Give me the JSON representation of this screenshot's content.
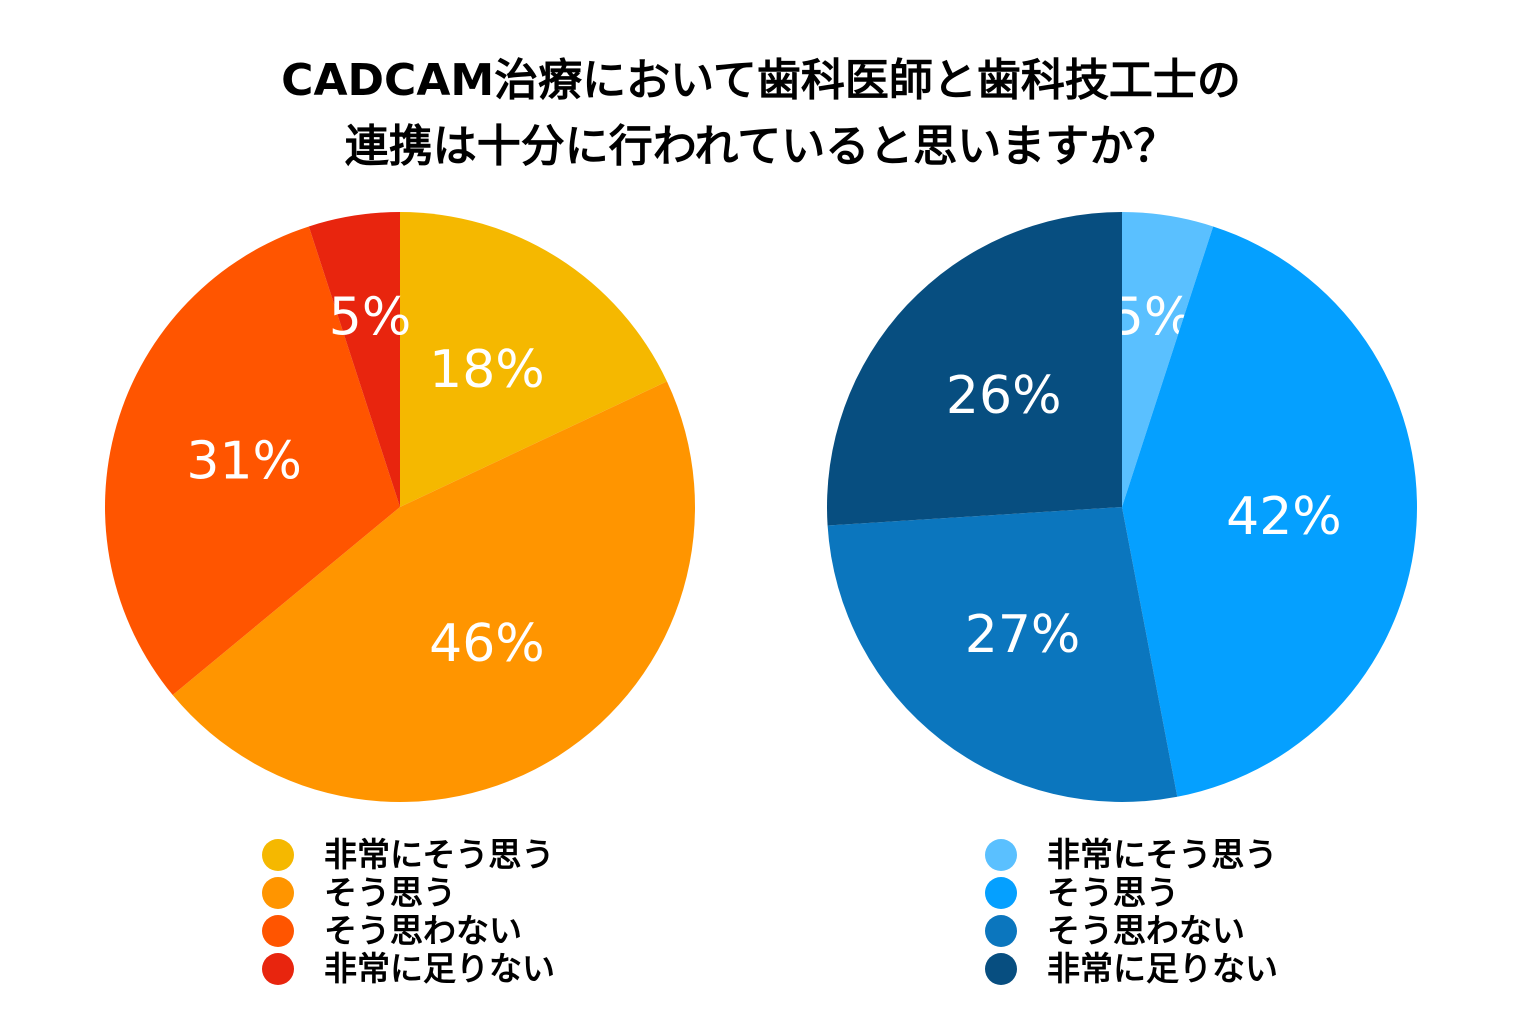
{
  "title": {
    "line1": "CADCAM治療において歯科医師と歯科技工士の",
    "line2": "連携は十分に行われていると思いますか？"
  },
  "chart_data": [
    {
      "type": "pie",
      "slices": [
        {
          "label": "非常にそう思う",
          "value": 18,
          "color": "#F5B800"
        },
        {
          "label": "そう思う",
          "value": 46,
          "color": "#FF9500"
        },
        {
          "label": "そう思わない",
          "value": 31,
          "color": "#FF5500"
        },
        {
          "label": "非常に足りない",
          "value": 5,
          "color": "#E8250E"
        }
      ],
      "data_labels": [
        "18%",
        "46%",
        "31%",
        "5%"
      ],
      "legend_position": "bottom"
    },
    {
      "type": "pie",
      "slices": [
        {
          "label": "非常にそう思う",
          "value": 5,
          "color": "#5AC0FF"
        },
        {
          "label": "そう思う",
          "value": 42,
          "color": "#05A0FF"
        },
        {
          "label": "そう思わない",
          "value": 27,
          "color": "#0B76BE"
        },
        {
          "label": "非常に足りない",
          "value": 26,
          "color": "#074E80"
        }
      ],
      "data_labels": [
        "5%",
        "42%",
        "27%",
        "26%"
      ],
      "legend_position": "bottom"
    }
  ]
}
